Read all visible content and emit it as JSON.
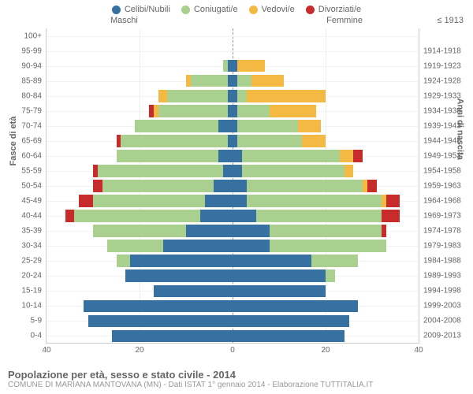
{
  "legend": [
    {
      "label": "Celibi/Nubili",
      "color": "#3671a2"
    },
    {
      "label": "Coniugati/e",
      "color": "#a9d08e"
    },
    {
      "label": "Vedovi/e",
      "color": "#f4b942"
    },
    {
      "label": "Divorziati/e",
      "color": "#c82b2b"
    }
  ],
  "headers": {
    "male": "Maschi",
    "female": "Femmine",
    "year": "≤ 1913"
  },
  "axis_titles": {
    "left": "Fasce di età",
    "right": "Anni di nascita"
  },
  "chart": {
    "type": "population-pyramid",
    "xmax": 40,
    "xticks": [
      40,
      20,
      0,
      20,
      40
    ],
    "background": "#ffffff",
    "grid_color": "#eeeeee",
    "center_dash_color": "#999999",
    "bar_height_ratio": 0.82,
    "colors": {
      "single": "#3671a2",
      "married": "#a9d08e",
      "widowed": "#f4b942",
      "divorced": "#c82b2b"
    },
    "rows": [
      {
        "age": "100+",
        "year": "",
        "m": [
          0,
          0,
          0,
          0
        ],
        "f": [
          0,
          0,
          0,
          0
        ]
      },
      {
        "age": "95-99",
        "year": "1914-1918",
        "m": [
          0,
          0,
          0,
          0
        ],
        "f": [
          0,
          0,
          0,
          0
        ]
      },
      {
        "age": "90-94",
        "year": "1919-1923",
        "m": [
          1,
          1,
          0,
          0
        ],
        "f": [
          1,
          0,
          6,
          0
        ]
      },
      {
        "age": "85-89",
        "year": "1924-1928",
        "m": [
          1,
          8,
          1,
          0
        ],
        "f": [
          1,
          3,
          7,
          0
        ]
      },
      {
        "age": "80-84",
        "year": "1929-1933",
        "m": [
          1,
          13,
          2,
          0
        ],
        "f": [
          1,
          2,
          17,
          0
        ]
      },
      {
        "age": "75-79",
        "year": "1934-1938",
        "m": [
          1,
          15,
          1,
          1
        ],
        "f": [
          1,
          7,
          10,
          0
        ]
      },
      {
        "age": "70-74",
        "year": "1939-1943",
        "m": [
          3,
          18,
          0,
          0
        ],
        "f": [
          1,
          13,
          5,
          0
        ]
      },
      {
        "age": "65-69",
        "year": "1944-1948",
        "m": [
          1,
          23,
          0,
          1
        ],
        "f": [
          1,
          14,
          5,
          0
        ]
      },
      {
        "age": "60-64",
        "year": "1949-1953",
        "m": [
          3,
          22,
          0,
          0
        ],
        "f": [
          2,
          21,
          3,
          2
        ]
      },
      {
        "age": "55-59",
        "year": "1954-1958",
        "m": [
          2,
          27,
          0,
          1
        ],
        "f": [
          2,
          22,
          2,
          0
        ]
      },
      {
        "age": "50-54",
        "year": "1959-1963",
        "m": [
          4,
          24,
          0,
          2
        ],
        "f": [
          3,
          25,
          1,
          2
        ]
      },
      {
        "age": "45-49",
        "year": "1964-1968",
        "m": [
          6,
          24,
          0,
          3
        ],
        "f": [
          3,
          29,
          1,
          3
        ]
      },
      {
        "age": "40-44",
        "year": "1969-1973",
        "m": [
          7,
          27,
          0,
          2
        ],
        "f": [
          5,
          27,
          0,
          4
        ]
      },
      {
        "age": "35-39",
        "year": "1974-1978",
        "m": [
          10,
          20,
          0,
          0
        ],
        "f": [
          8,
          24,
          0,
          1
        ]
      },
      {
        "age": "30-34",
        "year": "1979-1983",
        "m": [
          15,
          12,
          0,
          0
        ],
        "f": [
          8,
          25,
          0,
          0
        ]
      },
      {
        "age": "25-29",
        "year": "1984-1988",
        "m": [
          22,
          3,
          0,
          0
        ],
        "f": [
          17,
          10,
          0,
          0
        ]
      },
      {
        "age": "20-24",
        "year": "1989-1993",
        "m": [
          23,
          0,
          0,
          0
        ],
        "f": [
          20,
          2,
          0,
          0
        ]
      },
      {
        "age": "15-19",
        "year": "1994-1998",
        "m": [
          17,
          0,
          0,
          0
        ],
        "f": [
          20,
          0,
          0,
          0
        ]
      },
      {
        "age": "10-14",
        "year": "1999-2003",
        "m": [
          32,
          0,
          0,
          0
        ],
        "f": [
          27,
          0,
          0,
          0
        ]
      },
      {
        "age": "5-9",
        "year": "2004-2008",
        "m": [
          31,
          0,
          0,
          0
        ],
        "f": [
          25,
          0,
          0,
          0
        ]
      },
      {
        "age": "0-4",
        "year": "2009-2013",
        "m": [
          26,
          0,
          0,
          0
        ],
        "f": [
          24,
          0,
          0,
          0
        ]
      }
    ]
  },
  "footer": {
    "title": "Popolazione per età, sesso e stato civile - 2014",
    "sub": "COMUNE DI MARIANA MANTOVANA (MN) - Dati ISTAT 1° gennaio 2014 - Elaborazione TUTTITALIA.IT"
  }
}
